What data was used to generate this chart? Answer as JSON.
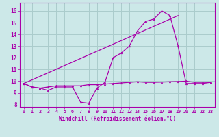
{
  "xlabel": "Windchill (Refroidissement éolien,°C)",
  "x_ticks": [
    0,
    1,
    2,
    3,
    4,
    5,
    6,
    7,
    8,
    9,
    10,
    11,
    12,
    13,
    14,
    15,
    16,
    17,
    18,
    19,
    20,
    21,
    22,
    23
  ],
  "ylim": [
    7.8,
    16.7
  ],
  "xlim": [
    -0.5,
    23.5
  ],
  "yticks": [
    8,
    9,
    10,
    11,
    12,
    13,
    14,
    15,
    16
  ],
  "bg_color": "#cce8e8",
  "grid_color": "#aacccc",
  "line_color": "#aa00aa",
  "line1_x": [
    0,
    1,
    2,
    3,
    4,
    5,
    6,
    7,
    8,
    9,
    10,
    11,
    12,
    13,
    14,
    15,
    16,
    17,
    18,
    19,
    20,
    21,
    22,
    23
  ],
  "line1_y": [
    9.8,
    9.5,
    9.4,
    9.2,
    9.5,
    9.5,
    9.5,
    8.2,
    8.1,
    9.4,
    9.9,
    12.0,
    12.4,
    13.0,
    14.3,
    15.1,
    15.3,
    16.0,
    15.6,
    13.0,
    9.8,
    9.8,
    9.8,
    9.9
  ],
  "line2_x": [
    0,
    1,
    2,
    3,
    4,
    5,
    6,
    7,
    8,
    9,
    10,
    11,
    12,
    13,
    14,
    15,
    16,
    17,
    18,
    19,
    20,
    21,
    22,
    23
  ],
  "line2_y": [
    9.8,
    9.5,
    9.4,
    9.5,
    9.6,
    9.6,
    9.6,
    9.6,
    9.7,
    9.7,
    9.75,
    9.8,
    9.85,
    9.9,
    9.95,
    9.9,
    9.9,
    9.92,
    9.95,
    9.97,
    10.0,
    9.9,
    9.9,
    9.9
  ],
  "line3_x": [
    0,
    19
  ],
  "line3_y": [
    9.8,
    15.6
  ]
}
